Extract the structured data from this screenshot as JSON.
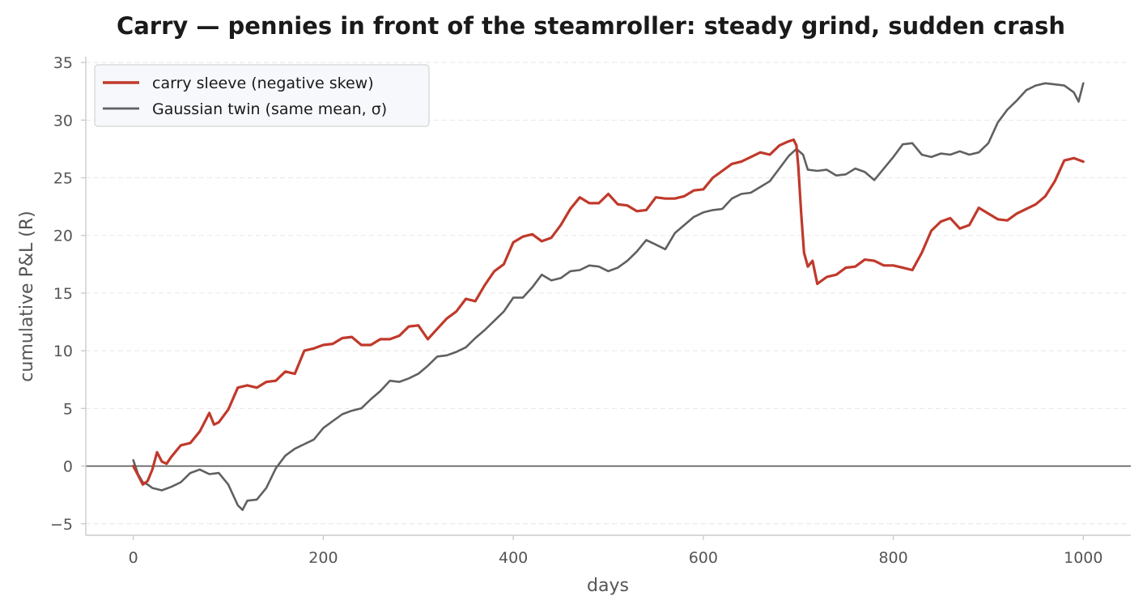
{
  "chart_data": {
    "type": "line",
    "title": "Carry — pennies in front of the steamroller: steady grind, sudden crash",
    "xlabel": "days",
    "ylabel": "cumulative P&L (R)",
    "xlim": [
      -50,
      1050
    ],
    "ylim": [
      -6,
      35.5
    ],
    "xticks": [
      0,
      200,
      400,
      600,
      800,
      1000
    ],
    "yticks": [
      -5,
      0,
      5,
      10,
      15,
      20,
      25,
      30,
      35
    ],
    "xtick_labels": [
      "0",
      "200",
      "400",
      "600",
      "800",
      "1000"
    ],
    "ytick_labels": [
      "−5",
      "0",
      "5",
      "10",
      "15",
      "20",
      "25",
      "30",
      "35"
    ],
    "grid": "horizontal dashed",
    "zero_line": true,
    "legend_position": "top-left",
    "series": [
      {
        "name": "carry sleeve (negative skew)",
        "color": "#c0392b",
        "x": [
          0,
          5,
          10,
          15,
          20,
          25,
          30,
          35,
          40,
          50,
          60,
          70,
          80,
          85,
          90,
          100,
          110,
          120,
          130,
          140,
          150,
          160,
          170,
          180,
          190,
          200,
          210,
          220,
          230,
          240,
          250,
          260,
          270,
          280,
          290,
          300,
          310,
          320,
          330,
          340,
          350,
          360,
          370,
          380,
          390,
          400,
          410,
          420,
          430,
          440,
          450,
          460,
          470,
          480,
          490,
          500,
          510,
          520,
          530,
          540,
          550,
          560,
          570,
          580,
          590,
          600,
          610,
          620,
          630,
          640,
          650,
          660,
          670,
          680,
          688,
          695,
          698,
          700,
          703,
          706,
          710,
          715,
          720,
          730,
          740,
          750,
          760,
          770,
          780,
          790,
          800,
          810,
          820,
          830,
          840,
          850,
          860,
          870,
          880,
          890,
          900,
          910,
          920,
          930,
          940,
          950,
          960,
          970,
          980,
          990,
          1000
        ],
        "values": [
          0,
          -0.8,
          -1.6,
          -1.3,
          -0.3,
          1.2,
          0.4,
          0.2,
          0.8,
          1.8,
          2.0,
          3.0,
          4.6,
          3.6,
          3.8,
          4.9,
          6.8,
          7.0,
          6.8,
          7.3,
          7.4,
          8.2,
          8.0,
          10.0,
          10.2,
          10.5,
          10.6,
          11.1,
          11.2,
          10.5,
          10.5,
          11.0,
          11.0,
          11.3,
          12.1,
          12.2,
          11.0,
          11.9,
          12.8,
          13.4,
          14.5,
          14.3,
          15.7,
          16.9,
          17.5,
          19.4,
          19.9,
          20.1,
          19.5,
          19.8,
          20.9,
          22.3,
          23.3,
          22.8,
          22.8,
          23.6,
          22.7,
          22.6,
          22.1,
          22.2,
          23.3,
          23.2,
          23.2,
          23.4,
          23.9,
          24.0,
          25.0,
          25.6,
          26.2,
          26.4,
          26.8,
          27.2,
          27.0,
          27.8,
          28.1,
          28.3,
          27.8,
          26.0,
          22.0,
          18.5,
          17.3,
          17.8,
          15.8,
          16.4,
          16.6,
          17.2,
          17.3,
          17.9,
          17.8,
          17.4,
          17.4,
          17.2,
          17.0,
          18.5,
          20.4,
          21.2,
          21.5,
          20.6,
          20.9,
          22.4,
          21.9,
          21.4,
          21.3,
          21.9,
          22.3,
          22.7,
          23.4,
          24.7,
          26.5,
          26.7,
          26.4
        ]
      },
      {
        "name": "Gaussian twin (same mean, σ)",
        "color": "#606060",
        "x": [
          0,
          5,
          10,
          15,
          20,
          30,
          40,
          50,
          60,
          70,
          80,
          90,
          100,
          110,
          115,
          120,
          130,
          140,
          150,
          160,
          170,
          180,
          190,
          200,
          210,
          220,
          230,
          240,
          250,
          260,
          270,
          280,
          290,
          300,
          310,
          320,
          330,
          340,
          350,
          360,
          370,
          380,
          390,
          400,
          410,
          420,
          430,
          440,
          450,
          460,
          470,
          480,
          490,
          500,
          510,
          520,
          530,
          540,
          550,
          560,
          570,
          580,
          590,
          600,
          610,
          620,
          630,
          640,
          650,
          660,
          670,
          680,
          690,
          698,
          705,
          710,
          720,
          730,
          740,
          750,
          760,
          770,
          780,
          790,
          800,
          810,
          820,
          830,
          840,
          850,
          860,
          870,
          880,
          890,
          900,
          910,
          920,
          930,
          940,
          950,
          960,
          970,
          980,
          990,
          995,
          1000
        ],
        "values": [
          0.5,
          -0.7,
          -1.4,
          -1.6,
          -1.9,
          -2.1,
          -1.8,
          -1.4,
          -0.6,
          -0.3,
          -0.7,
          -0.6,
          -1.6,
          -3.4,
          -3.8,
          -3.0,
          -2.9,
          -1.9,
          -0.2,
          0.9,
          1.5,
          1.9,
          2.3,
          3.3,
          3.9,
          4.5,
          4.8,
          5.0,
          5.8,
          6.5,
          7.4,
          7.3,
          7.6,
          8.0,
          8.7,
          9.5,
          9.6,
          9.9,
          10.3,
          11.1,
          11.8,
          12.6,
          13.4,
          14.6,
          14.6,
          15.5,
          16.6,
          16.1,
          16.3,
          16.9,
          17.0,
          17.4,
          17.3,
          16.9,
          17.2,
          17.8,
          18.6,
          19.6,
          19.2,
          18.8,
          20.2,
          20.9,
          21.6,
          22.0,
          22.2,
          22.3,
          23.2,
          23.6,
          23.7,
          24.2,
          24.7,
          25.8,
          26.9,
          27.5,
          27.0,
          25.7,
          25.6,
          25.7,
          25.2,
          25.3,
          25.8,
          25.5,
          24.8,
          25.8,
          26.8,
          27.9,
          28.0,
          27.0,
          26.8,
          27.1,
          27.0,
          27.3,
          27.0,
          27.2,
          28.0,
          29.8,
          30.9,
          31.7,
          32.6,
          33.0,
          33.2,
          33.1,
          33.0,
          32.4,
          31.6,
          33.2
        ]
      }
    ]
  }
}
